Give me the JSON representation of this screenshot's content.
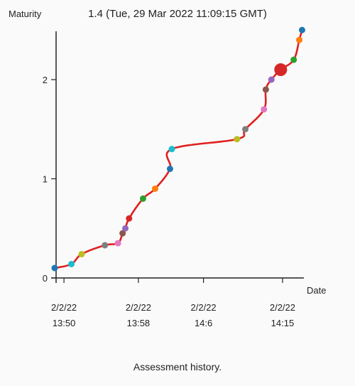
{
  "header": {
    "hover_readout": "1.4 (Tue, 29 Mar 2022 11:09:15 GMT)"
  },
  "caption": "Assessment history.",
  "chart_data": {
    "type": "line",
    "ylabel": "Maturity",
    "xlabel": "Date",
    "ylim": [
      0,
      2.5
    ],
    "yticks": [
      0,
      1,
      2
    ],
    "xlim_minutes": [
      0,
      25
    ],
    "xticks": [
      {
        "minute": 1,
        "date": "2/2/22",
        "time": "13:50"
      },
      {
        "minute": 9,
        "date": "2/2/22",
        "time": "13:58"
      },
      {
        "minute": 16,
        "date": "2/2/22",
        "time": "14:6"
      },
      {
        "minute": 24.5,
        "date": "2/2/22",
        "time": "14:15"
      }
    ],
    "line_color": "#e02020",
    "highlight_index": 17,
    "points": [
      {
        "x": 0.0,
        "y": 0.1,
        "color": "#1f77b4"
      },
      {
        "x": 1.8,
        "y": 0.14,
        "color": "#17becf"
      },
      {
        "x": 2.9,
        "y": 0.24,
        "color": "#bcbd22"
      },
      {
        "x": 5.4,
        "y": 0.33,
        "color": "#7f7f7f"
      },
      {
        "x": 6.8,
        "y": 0.35,
        "color": "#e377c2"
      },
      {
        "x": 7.3,
        "y": 0.45,
        "color": "#8c564b"
      },
      {
        "x": 7.6,
        "y": 0.5,
        "color": "#9467bd"
      },
      {
        "x": 8.0,
        "y": 0.6,
        "color": "#d62728"
      },
      {
        "x": 9.5,
        "y": 0.8,
        "color": "#2ca02c"
      },
      {
        "x": 10.8,
        "y": 0.9,
        "color": "#ff7f0e"
      },
      {
        "x": 12.4,
        "y": 1.1,
        "color": "#1f77b4"
      },
      {
        "x": 12.6,
        "y": 1.3,
        "color": "#17becf"
      },
      {
        "x": 19.6,
        "y": 1.4,
        "color": "#bcbd22"
      },
      {
        "x": 20.5,
        "y": 1.5,
        "color": "#7f7f7f"
      },
      {
        "x": 22.5,
        "y": 1.7,
        "color": "#e377c2"
      },
      {
        "x": 22.7,
        "y": 1.9,
        "color": "#8c564b"
      },
      {
        "x": 23.3,
        "y": 2.0,
        "color": "#9467bd"
      },
      {
        "x": 24.3,
        "y": 2.1,
        "color": "#d62728"
      },
      {
        "x": 25.7,
        "y": 2.2,
        "color": "#2ca02c"
      },
      {
        "x": 26.3,
        "y": 2.4,
        "color": "#ff7f0e"
      },
      {
        "x": 26.6,
        "y": 2.5,
        "color": "#1f77b4"
      }
    ]
  }
}
